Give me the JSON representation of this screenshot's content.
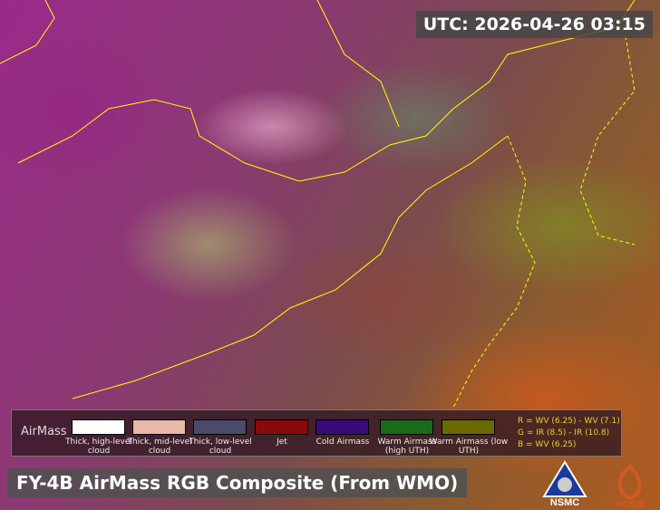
{
  "timestamp": "UTC:  2026-04-26 03:15",
  "title": "FY-4B AirMass RGB Composite (From WMO)",
  "legend": {
    "title": "AirMass",
    "items": [
      {
        "label": "Thick, high-level cloud",
        "color": "#ffffff"
      },
      {
        "label": "Thick, mid-level cloud",
        "color": "#e8b8a8"
      },
      {
        "label": "Thick, low-level cloud",
        "color": "#4a4a6a"
      },
      {
        "label": "Jet",
        "color": "#8a0a0a"
      },
      {
        "label": "Cold Airmass",
        "color": "#3a0a7a"
      },
      {
        "label": "Warm Airmass (high UTH)",
        "color": "#1a6a1a"
      },
      {
        "label": "Warm Airmass (low UTH)",
        "color": "#6a6a00"
      }
    ],
    "formula": [
      "R = WV (6.25) - WV (7.1)",
      "G = IR (8.5) - IR (10.8)",
      "B = WV (6.25)"
    ]
  },
  "logos": {
    "nsmc": "NSMC",
    "ncsw": "NCSW"
  }
}
